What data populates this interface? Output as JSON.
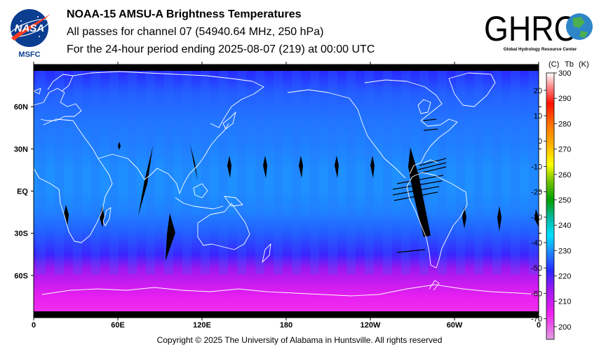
{
  "header": {
    "title": "NOAA-15 AMSU-A Brightness Temperatures",
    "subtitle": "All passes for channel 07 (54940.64 MHz, 250 hPa)",
    "period": "For the 24-hour period ending 2025-08-07 (219) at 00:00 UTC"
  },
  "logos": {
    "nasa_text": "NASA",
    "nasa_center": "MSFC",
    "ghrc_text": "GHRC",
    "ghrc_sub": "Global Hydrology Resource Center"
  },
  "footer": {
    "copyright": "Copyright © 2025 The University of Alabama in Huntsville.  All rights reserved"
  },
  "colors": {
    "land_outline": "#ffffff",
    "missing_data": "#000000",
    "frame": "#000000"
  },
  "chart_data": {
    "type": "heatmap",
    "x_tick_labels": [
      "0",
      "60E",
      "120E",
      "180",
      "120W",
      "60W",
      "0"
    ],
    "y_tick_labels": [
      "60N",
      "30N",
      "EQ",
      "30S",
      "60S"
    ],
    "y_tick_lat": [
      60,
      30,
      0,
      -30,
      -60
    ],
    "x_tick_lon": [
      0,
      60,
      120,
      180,
      240,
      300,
      360
    ],
    "lon_range": [
      0,
      360
    ],
    "lat_range": [
      -90,
      90
    ],
    "colorbar": {
      "unit_c": "(C)",
      "unit_tb": "Tb",
      "unit_k": "(K)",
      "kelvin_ticks": [
        300,
        290,
        280,
        270,
        260,
        250,
        240,
        230,
        220,
        210,
        200
      ],
      "celsius_ticks": [
        20,
        10,
        0,
        -10,
        -20,
        -30,
        -40,
        -50,
        -60,
        -70
      ],
      "range_k": [
        195,
        300
      ],
      "stops": [
        {
          "k": 195,
          "color": "#e0a0e0"
        },
        {
          "k": 205,
          "color": "#f020f0"
        },
        {
          "k": 215,
          "color": "#9a18f0"
        },
        {
          "k": 222,
          "color": "#2828ff"
        },
        {
          "k": 230,
          "color": "#1e90ff"
        },
        {
          "k": 236,
          "color": "#00e0ff"
        },
        {
          "k": 243,
          "color": "#00b8a0"
        },
        {
          "k": 250,
          "color": "#00a000"
        },
        {
          "k": 257,
          "color": "#70c000"
        },
        {
          "k": 264,
          "color": "#ffff00"
        },
        {
          "k": 272,
          "color": "#ffb000"
        },
        {
          "k": 280,
          "color": "#ff7000"
        },
        {
          "k": 288,
          "color": "#ff1000"
        },
        {
          "k": 294,
          "color": "#ff8080"
        },
        {
          "k": 300,
          "color": "#ffffff"
        }
      ]
    },
    "zonal_profile": [
      {
        "lat": 90,
        "k": 222
      },
      {
        "lat": 70,
        "k": 226
      },
      {
        "lat": 50,
        "k": 228
      },
      {
        "lat": 30,
        "k": 229
      },
      {
        "lat": 15,
        "k": 230
      },
      {
        "lat": 0,
        "k": 230
      },
      {
        "lat": -15,
        "k": 229
      },
      {
        "lat": -30,
        "k": 226
      },
      {
        "lat": -45,
        "k": 221
      },
      {
        "lat": -55,
        "k": 215
      },
      {
        "lat": -65,
        "k": 210
      },
      {
        "lat": -75,
        "k": 206
      },
      {
        "lat": -90,
        "k": 204
      }
    ]
  }
}
